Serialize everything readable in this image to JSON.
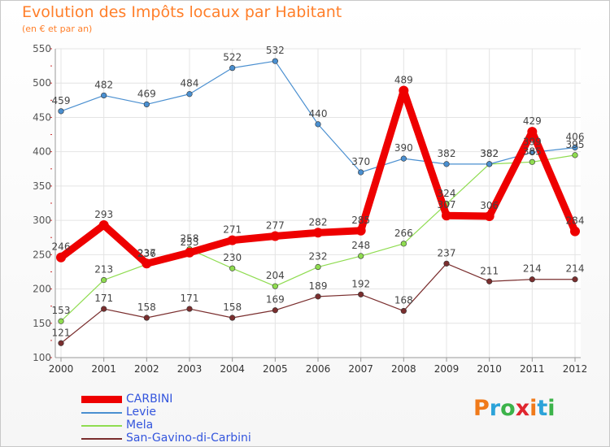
{
  "title": "Evolution des Impôts locaux par Habitant",
  "subtitle": "(en € et par an)",
  "logo": {
    "text": "Proxiti",
    "letters": [
      "P",
      "r",
      "o",
      "x",
      "i",
      "t",
      "i"
    ],
    "colors": [
      "#f07a1a",
      "#2ca3d9",
      "#3cb34a",
      "#e0262f",
      "#f07a1a",
      "#2ca3d9",
      "#3cb34a"
    ]
  },
  "chart_data": {
    "type": "line",
    "title": "Evolution des Impôts locaux par Habitant",
    "subtitle": "(en € et par an)",
    "x": [
      "2000",
      "2001",
      "2002",
      "2003",
      "2004",
      "2005",
      "2006",
      "2007",
      "2008",
      "2009",
      "2010",
      "2011",
      "2012"
    ],
    "ylim": [
      100,
      550
    ],
    "yticks": [
      100,
      150,
      200,
      250,
      300,
      350,
      400,
      450,
      500,
      550
    ],
    "grid": true,
    "legend_position": "bottom-left",
    "series": [
      {
        "name": "CARBINI",
        "color": "#ee0000",
        "values": [
          246,
          293,
          237,
          253,
          271,
          277,
          282,
          285,
          489,
          307,
          306,
          429,
          284
        ],
        "labels": [
          "246",
          "293",
          "237",
          "253",
          "271",
          "277",
          "282",
          "285",
          "489",
          "307",
          "306",
          "429",
          "284"
        ]
      },
      {
        "name": "Levie",
        "color": "#4a8fd0",
        "values": [
          459,
          482,
          469,
          484,
          522,
          532,
          440,
          370,
          390,
          382,
          382,
          399,
          406
        ],
        "labels": [
          "459",
          "482",
          "469",
          "484",
          "522",
          "532",
          "440",
          "370",
          "390",
          "382",
          "382",
          "399",
          "406"
        ]
      },
      {
        "name": "Mela",
        "color": "#8fdc50",
        "values": [
          153,
          213,
          236,
          258,
          230,
          204,
          232,
          248,
          266,
          324,
          382,
          385,
          395
        ],
        "labels": [
          "153",
          "213",
          "236",
          "258",
          "230",
          "204",
          "232",
          "248",
          "266",
          "324",
          "382",
          "385",
          "395"
        ]
      },
      {
        "name": "San-Gavino-di-Carbini",
        "color": "#7a2e2e",
        "values": [
          121,
          171,
          158,
          171,
          158,
          169,
          189,
          192,
          168,
          237,
          211,
          214,
          214
        ],
        "labels": [
          "121",
          "171",
          "158",
          "171",
          "158",
          "169",
          "189",
          "192",
          "168",
          "237",
          "211",
          "214",
          "214"
        ]
      }
    ]
  }
}
